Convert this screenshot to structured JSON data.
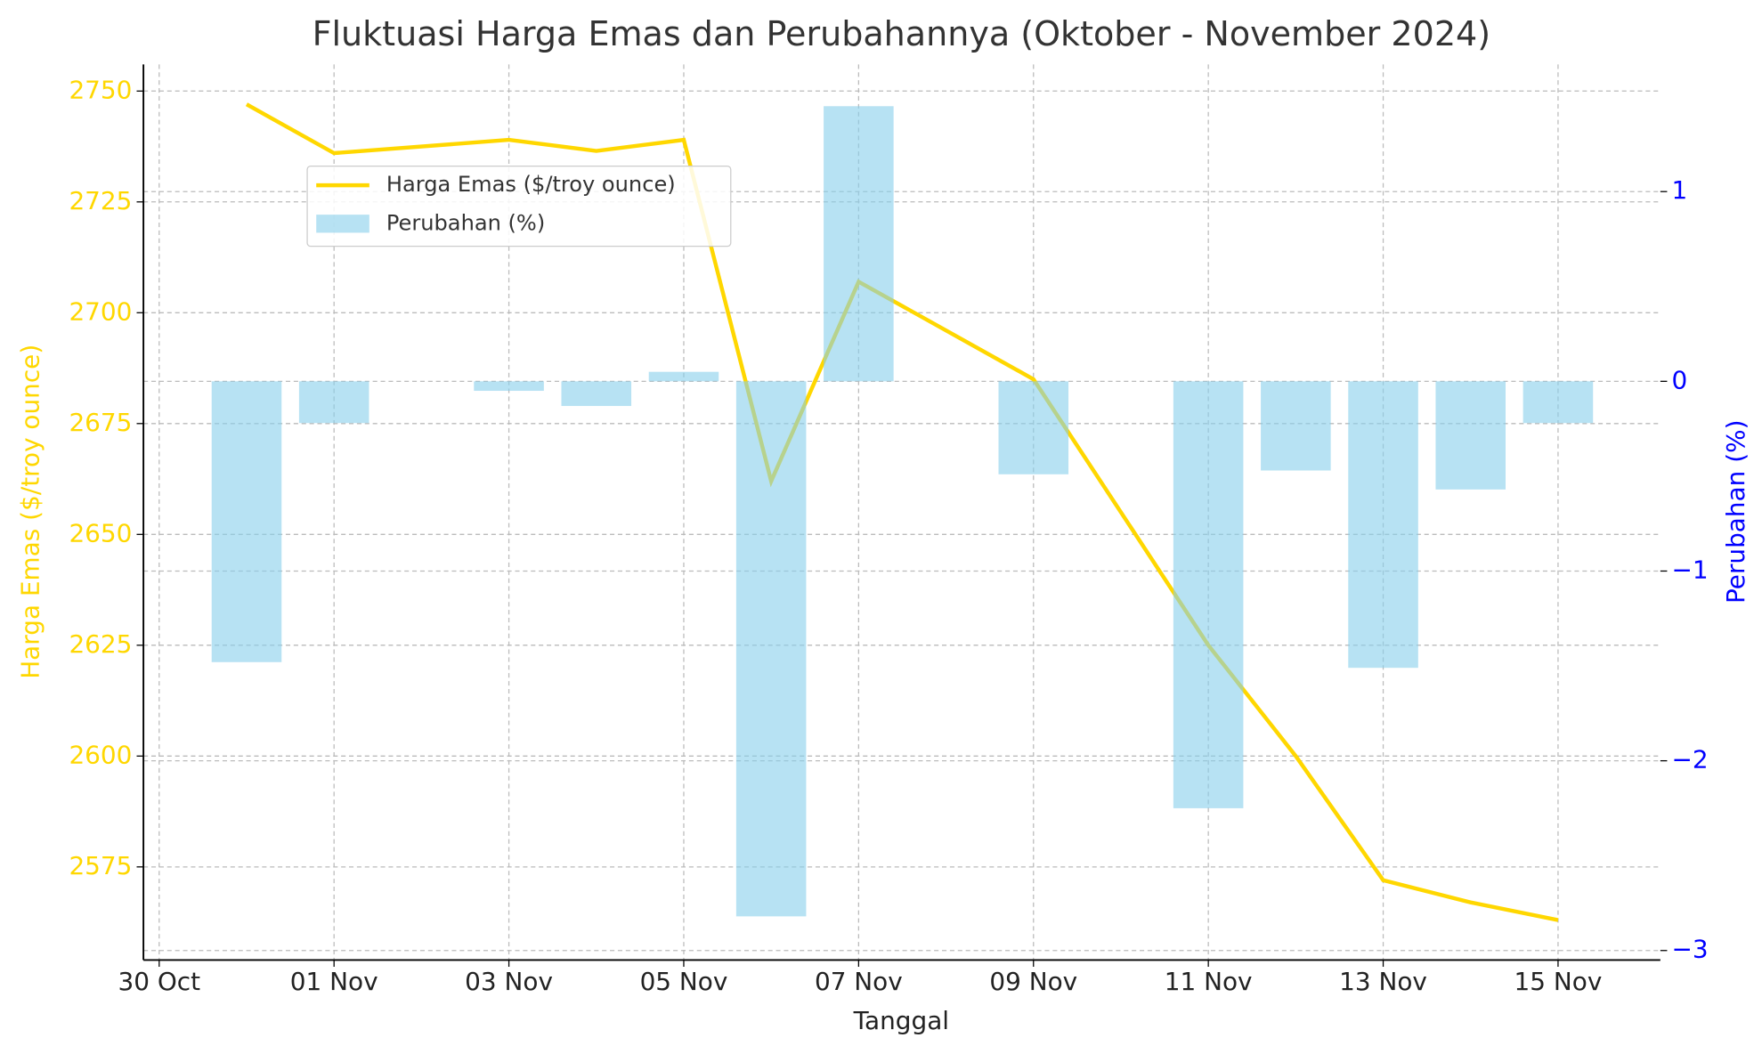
{
  "chart_data": {
    "type": "bar-line",
    "title": "Fluktuasi Harga Emas dan Perubahannya (Oktober - November 2024)",
    "x_label": "Tanggal",
    "y_label": "Harga Emas ($/troy ounce)",
    "y2_label": "Perubahan (%)",
    "x": [
      "31 Oct",
      "01 Nov",
      "03 Nov",
      "04 Nov",
      "05 Nov",
      "06 Nov",
      "07 Nov",
      "09 Nov",
      "11 Nov",
      "12 Nov",
      "13 Nov",
      "14 Nov",
      "15 Nov"
    ],
    "xticks": [
      "30 Oct",
      "01 Nov",
      "03 Nov",
      "05 Nov",
      "07 Nov",
      "09 Nov",
      "11 Nov",
      "13 Nov",
      "15 Nov"
    ],
    "series": [
      {
        "name": "Harga Emas ($/troy ounce)",
        "type": "line",
        "color": "#FFD700",
        "values": [
          2747,
          2736,
          2739,
          2736.5,
          2739,
          2662,
          2707,
          2685,
          2625,
          2600,
          2572,
          2567,
          2563
        ]
      },
      {
        "name": "Perubahan (%)",
        "type": "bar",
        "axis": "y2",
        "color": "#87CEEB",
        "values": [
          -1.48,
          -0.22,
          -0.05,
          -0.13,
          0.05,
          -2.82,
          1.45,
          -0.49,
          -2.25,
          -0.47,
          -1.51,
          -0.57,
          -0.22
        ]
      }
    ],
    "ylim": [
      2554,
      2756
    ],
    "yticks": [
      2575,
      2600,
      2625,
      2650,
      2675,
      2700,
      2725,
      2750
    ],
    "y2lim": [
      -3.05,
      1.67
    ],
    "y2ticks": [
      {
        "value": -3,
        "label": "−3"
      },
      {
        "value": -2,
        "label": "−2"
      },
      {
        "value": -1,
        "label": "−1"
      },
      0,
      1
    ],
    "y_label_color": "#FFD700",
    "y2_label_color": "#0000FF",
    "grid": true,
    "legend": "upper left"
  }
}
